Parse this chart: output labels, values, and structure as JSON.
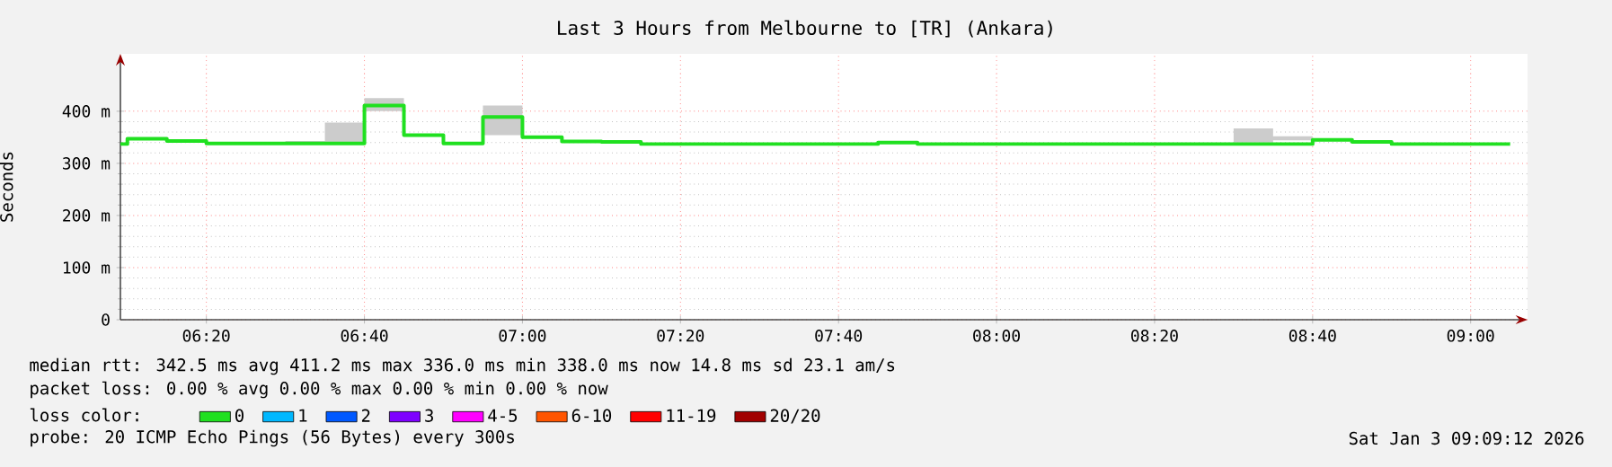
{
  "chart_data": {
    "type": "step",
    "title": "Last 3 Hours from Melbourne to [TR] (Ankara)",
    "ylabel": "Seconds",
    "x": [
      6.152,
      6.1667,
      6.25,
      6.3333,
      6.5,
      6.5833,
      6.6667,
      6.75,
      6.8333,
      6.9167,
      7.0,
      7.0833,
      7.1667,
      7.25,
      7.75,
      7.8333,
      8.5,
      8.5833,
      8.6667,
      8.75,
      8.8333,
      9.0833
    ],
    "series": [
      {
        "name": "0",
        "color": "#20e020",
        "values": [
          337,
          347,
          343,
          338,
          338,
          338,
          411,
          354,
          338,
          389,
          350,
          342,
          341,
          337,
          340,
          337,
          337,
          337,
          345,
          341,
          337,
          337
        ],
        "lower": [
          337,
          347,
          343,
          338,
          338,
          338,
          400,
          354,
          338,
          354,
          350,
          342,
          341,
          337,
          340,
          337,
          340,
          344,
          345,
          341,
          337,
          337
        ],
        "upper": [
          337,
          347,
          343,
          338,
          343,
          378,
          425,
          354,
          338,
          411,
          350,
          342,
          341,
          337,
          340,
          337,
          367,
          352,
          345,
          341,
          337,
          337
        ]
      },
      {
        "name": "1",
        "color": "#00b8ff",
        "values": [
          null,
          null,
          null,
          null,
          null,
          null,
          null,
          null,
          null,
          null,
          null,
          null,
          null,
          null,
          null,
          null,
          null,
          null,
          null,
          null,
          null,
          null
        ]
      },
      {
        "name": "2",
        "color": "#0059ff",
        "values": [
          null,
          null,
          null,
          null,
          null,
          null,
          null,
          null,
          null,
          null,
          null,
          null,
          null,
          null,
          null,
          null,
          null,
          null,
          null,
          null,
          null,
          null
        ]
      },
      {
        "name": "3",
        "color": "#7e00ff",
        "values": [
          null,
          null,
          null,
          null,
          null,
          null,
          null,
          null,
          null,
          null,
          null,
          null,
          null,
          null,
          null,
          null,
          null,
          null,
          null,
          null,
          null,
          null
        ]
      },
      {
        "name": "4-5",
        "color": "#ff00ff",
        "values": [
          null,
          null,
          null,
          null,
          null,
          null,
          null,
          null,
          null,
          null,
          null,
          null,
          null,
          null,
          null,
          null,
          null,
          null,
          null,
          null,
          null,
          null
        ]
      },
      {
        "name": "6-10",
        "color": "#ff5500",
        "values": [
          null,
          null,
          null,
          null,
          null,
          null,
          null,
          null,
          null,
          null,
          null,
          null,
          null,
          null,
          null,
          null,
          null,
          null,
          null,
          null,
          null,
          null
        ]
      },
      {
        "name": "11-19",
        "color": "#ff0000",
        "values": [
          null,
          null,
          null,
          null,
          null,
          null,
          null,
          null,
          null,
          null,
          null,
          null,
          null,
          null,
          null,
          null,
          null,
          null,
          null,
          null,
          null,
          null
        ]
      },
      {
        "name": "20/20",
        "color": "#a10000",
        "values": [
          null,
          null,
          null,
          null,
          null,
          null,
          null,
          null,
          null,
          null,
          null,
          null,
          null,
          null,
          null,
          null,
          null,
          null,
          null,
          null,
          null,
          null
        ]
      }
    ],
    "xlim": [
      6.152,
      9.12
    ],
    "ylim": [
      0,
      510
    ],
    "xticks": [
      {
        "value": 6.3333,
        "label": "06:20"
      },
      {
        "value": 6.6667,
        "label": "06:40"
      },
      {
        "value": 7.0,
        "label": "07:00"
      },
      {
        "value": 7.3333,
        "label": "07:20"
      },
      {
        "value": 7.6667,
        "label": "07:40"
      },
      {
        "value": 8.0,
        "label": "08:00"
      },
      {
        "value": 8.3333,
        "label": "08:20"
      },
      {
        "value": 8.6667,
        "label": "08:40"
      },
      {
        "value": 9.0,
        "label": "09:00"
      }
    ],
    "yticks": [
      0,
      {
        "value": 100,
        "label": "100 m"
      },
      {
        "value": 200,
        "label": "200 m"
      },
      {
        "value": 300,
        "label": "300 m"
      },
      {
        "value": 400,
        "label": "400 m"
      }
    ],
    "grid": true,
    "legend": "bottom left",
    "legend_title": "loss color:",
    "annotations": [
      "median rtt:  342.5 ms avg  411.2 ms max  336.0 ms min  338.0 ms now  14.8 ms sd  23.1   am/s",
      "packet loss: 0.00 % avg  0.00 % max  0.00 % min  0.00 % now",
      "probe:       20 ICMP Echo Pings (56 Bytes) every 300s",
      "Sat Jan  3 09:09:12 2026"
    ]
  }
}
